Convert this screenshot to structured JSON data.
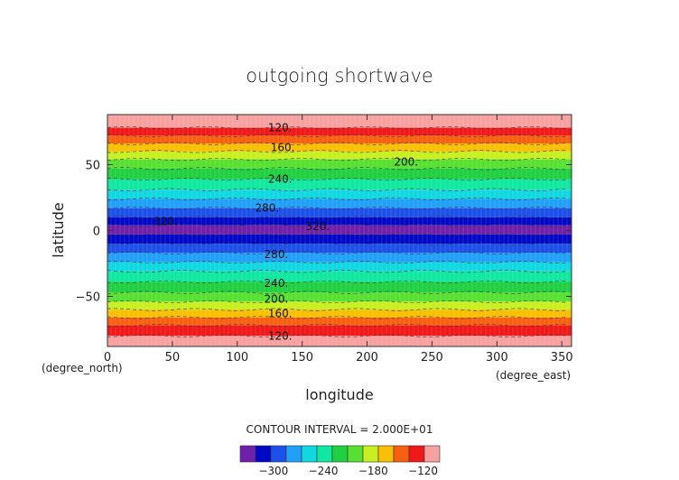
{
  "chart_data": {
    "type": "heatmap",
    "title": "outgoing shortwave",
    "xlabel": "longitude",
    "ylabel": "latitude",
    "x_units": "(degree_east)",
    "y_units": "(degree_north)",
    "xlim": [
      0,
      357.5
    ],
    "ylim": [
      -88,
      88
    ],
    "x_ticks": [
      0,
      50,
      100,
      150,
      200,
      250,
      300,
      350
    ],
    "y_ticks": [
      -50,
      0,
      50
    ],
    "contour_interval_text": "CONTOUR INTERVAL = 2.000E+01",
    "bands": [
      {
        "lat_min": 78,
        "lat_max": 88,
        "value": -110,
        "color": "#f7a0a0"
      },
      {
        "lat_min": 72,
        "lat_max": 78,
        "value": -130,
        "color": "#f01818"
      },
      {
        "lat_min": 66,
        "lat_max": 72,
        "value": -150,
        "color": "#f86010"
      },
      {
        "lat_min": 60,
        "lat_max": 66,
        "value": -170,
        "color": "#f8c000"
      },
      {
        "lat_min": 54,
        "lat_max": 60,
        "value": -190,
        "color": "#c8f020"
      },
      {
        "lat_min": 47,
        "lat_max": 54,
        "value": -210,
        "color": "#58e030"
      },
      {
        "lat_min": 39,
        "lat_max": 47,
        "value": -230,
        "color": "#20d040"
      },
      {
        "lat_min": 31,
        "lat_max": 39,
        "value": -250,
        "color": "#10e8a0"
      },
      {
        "lat_min": 24,
        "lat_max": 31,
        "value": -270,
        "color": "#10d8e0"
      },
      {
        "lat_min": 17,
        "lat_max": 24,
        "value": -290,
        "color": "#20a0f8"
      },
      {
        "lat_min": 10,
        "lat_max": 17,
        "value": -310,
        "color": "#1c50e8"
      },
      {
        "lat_min": 4,
        "lat_max": 10,
        "value": -330,
        "color": "#0008c8"
      },
      {
        "lat_min": -3,
        "lat_max": 4,
        "value": -350,
        "color": "#7020a8"
      },
      {
        "lat_min": -10,
        "lat_max": -3,
        "value": -330,
        "color": "#0008c8"
      },
      {
        "lat_min": -17,
        "lat_max": -10,
        "value": -310,
        "color": "#1c50e8"
      },
      {
        "lat_min": -24,
        "lat_max": -17,
        "value": -290,
        "color": "#20a0f8"
      },
      {
        "lat_min": -31,
        "lat_max": -24,
        "value": -270,
        "color": "#10d8e0"
      },
      {
        "lat_min": -39,
        "lat_max": -31,
        "value": -250,
        "color": "#10e8a0"
      },
      {
        "lat_min": -47,
        "lat_max": -39,
        "value": -230,
        "color": "#20d040"
      },
      {
        "lat_min": -54,
        "lat_max": -47,
        "value": -210,
        "color": "#58e030"
      },
      {
        "lat_min": -60,
        "lat_max": -54,
        "value": -190,
        "color": "#c8f020"
      },
      {
        "lat_min": -66,
        "lat_max": -60,
        "value": -170,
        "color": "#f8c000"
      },
      {
        "lat_min": -72,
        "lat_max": -66,
        "value": -150,
        "color": "#f86010"
      },
      {
        "lat_min": -80,
        "lat_max": -72,
        "value": -130,
        "color": "#f01818"
      },
      {
        "lat_min": -88,
        "lat_max": -80,
        "value": -110,
        "color": "#f7a0a0"
      }
    ],
    "contour_labels": [
      {
        "text": "120.",
        "lon": 133,
        "lat": 78
      },
      {
        "text": "160.",
        "lon": 135,
        "lat": 63
      },
      {
        "text": "200.",
        "lon": 230,
        "lat": 52
      },
      {
        "text": "240.",
        "lon": 133,
        "lat": 39
      },
      {
        "text": "280.",
        "lon": 123,
        "lat": 17
      },
      {
        "text": "320.",
        "lon": 45,
        "lat": 7
      },
      {
        "text": "320.",
        "lon": 162,
        "lat": 3
      },
      {
        "text": "280.",
        "lon": 130,
        "lat": -18
      },
      {
        "text": "240.",
        "lon": 130,
        "lat": -40
      },
      {
        "text": "200.",
        "lon": 130,
        "lat": -52
      },
      {
        "text": "160.",
        "lon": 133,
        "lat": -63
      },
      {
        "text": "120.",
        "lon": 133,
        "lat": -80
      }
    ],
    "legend": {
      "colors": [
        "#7020a8",
        "#0008c8",
        "#1c50e8",
        "#20a0f8",
        "#10d8e0",
        "#10e8a0",
        "#20d040",
        "#58e030",
        "#c8f020",
        "#f8c000",
        "#f86010",
        "#f01818",
        "#f7a0a0"
      ],
      "tick_labels": [
        "−300",
        "−240",
        "−180",
        "−120"
      ],
      "tick_values": [
        -300,
        -240,
        -180,
        -120
      ],
      "range": [
        -340,
        -100
      ]
    }
  }
}
